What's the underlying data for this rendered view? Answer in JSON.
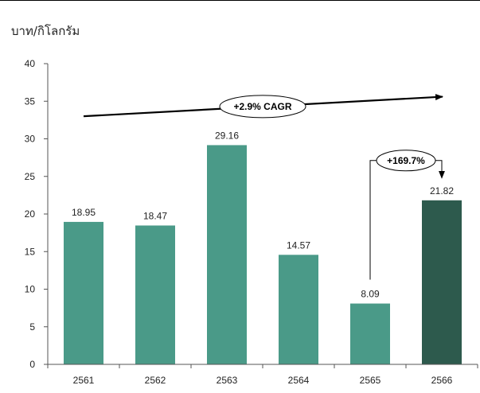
{
  "chart_data": {
    "type": "bar",
    "ylabel": "บาท/กิโลกรัม",
    "categories": [
      "2561",
      "2562",
      "2563",
      "2564",
      "2565",
      "2566"
    ],
    "values": [
      18.95,
      18.47,
      29.16,
      14.57,
      8.09,
      21.82
    ],
    "value_labels": [
      "18.95",
      "18.47",
      "29.16",
      "14.57",
      "8.09",
      "21.82"
    ],
    "ylim": [
      0,
      40
    ],
    "yticks": [
      0,
      5,
      10,
      15,
      20,
      25,
      30,
      35,
      40
    ],
    "grid": false,
    "colors": {
      "bar": "#4a9a88",
      "highlight": "#2d5a4d"
    },
    "highlight_index": 5,
    "annotations": {
      "cagr": {
        "label": "+2.9% CAGR",
        "from_y": 33,
        "to_y": 35.6
      },
      "growth": {
        "label": "+169.7%",
        "from_index": 4,
        "to_index": 5
      }
    }
  }
}
